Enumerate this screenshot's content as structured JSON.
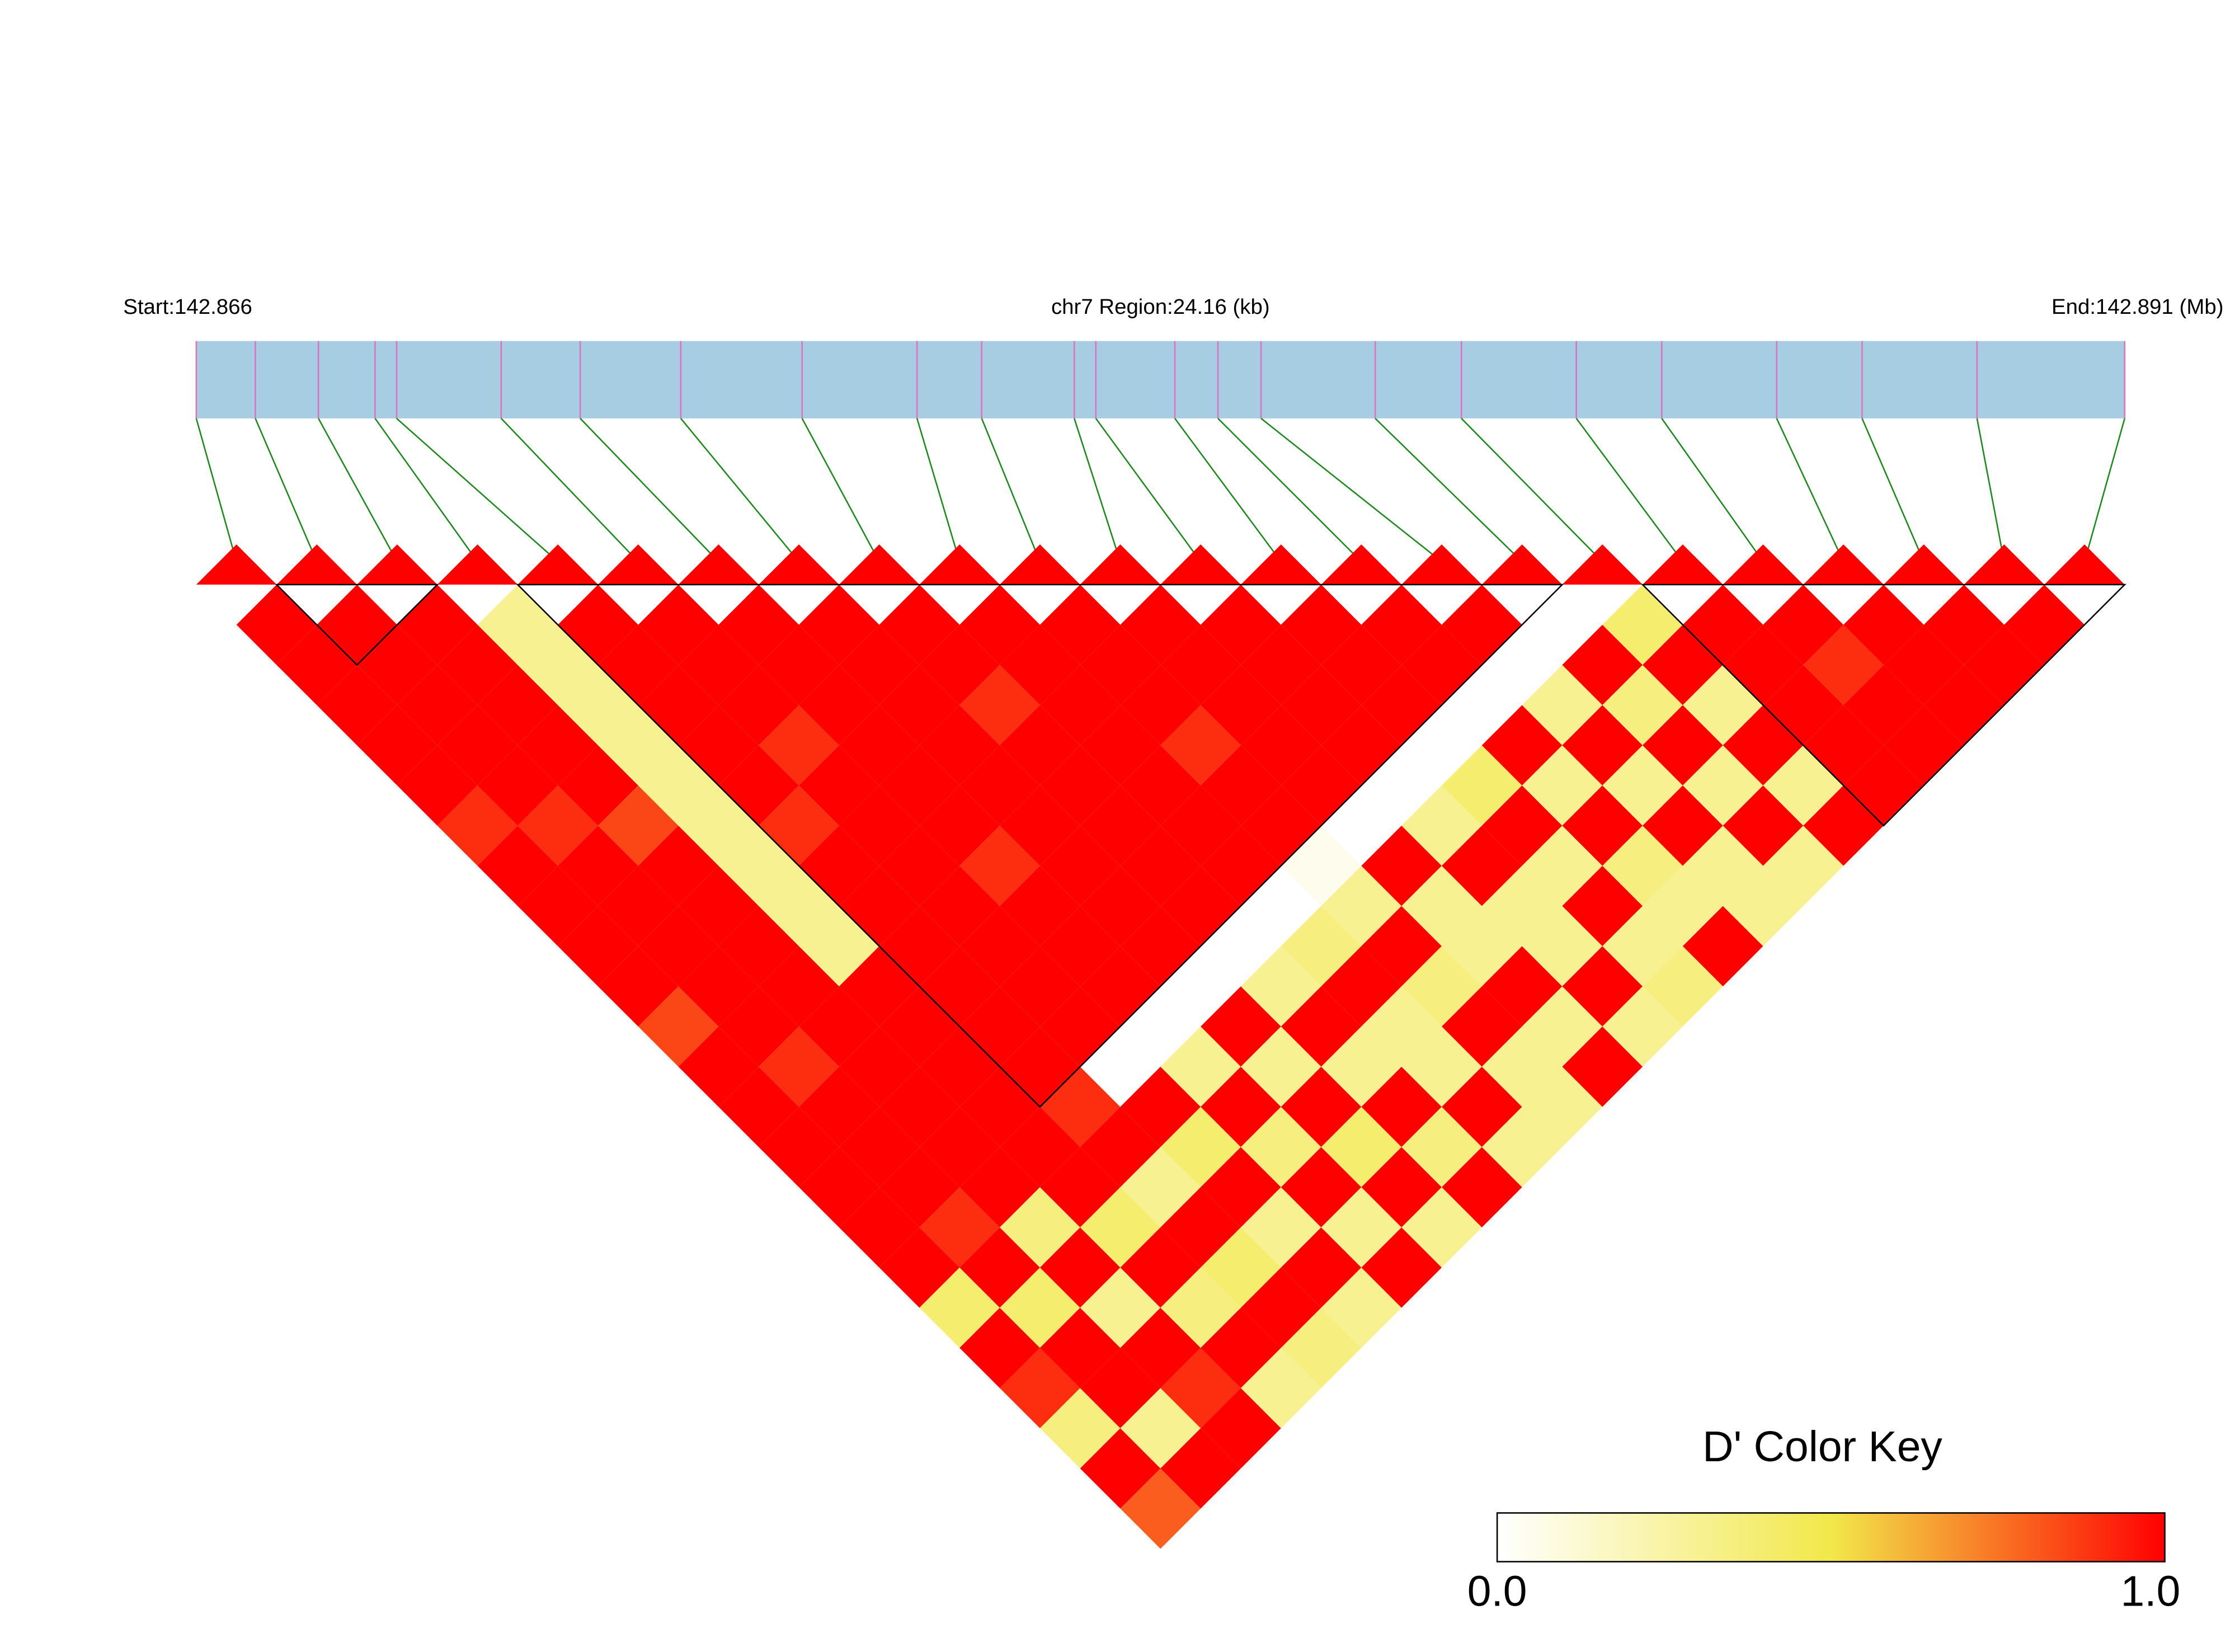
{
  "chart_data": {
    "type": "ld-heatmap",
    "start_label": "Start:142.866",
    "region_label": "chr7 Region:24.16 (kb)",
    "end_label": "End:142.891 (Mb)",
    "key_title": "D' Color Key",
    "xlim": [
      0,
      24.16
    ],
    "positions": [
      0,
      0.74,
      1.53,
      2.24,
      2.51,
      3.82,
      4.81,
      6.07,
      7.59,
      9.03,
      9.84,
      11.0,
      11.27,
      12.26,
      12.8,
      13.34,
      14.77,
      15.85,
      17.29,
      18.36,
      19.8,
      20.87,
      22.31,
      24.16
    ],
    "colors": [
      "#ffffff",
      "#f2e84a",
      "#ff0000"
    ],
    "key_ticks": [
      {
        "value": 0,
        "label": "0.0"
      },
      {
        "value": 1,
        "label": "1.0"
      }
    ],
    "blocks": [
      [
        1,
        2
      ],
      [
        4,
        16
      ],
      [
        18,
        23
      ]
    ],
    "matrix": [
      [
        1,
        1,
        1,
        1,
        1,
        0.9,
        1,
        1,
        1,
        1,
        0.85,
        1,
        1,
        1,
        1,
        1,
        1,
        0.4,
        1,
        0.9,
        0.35,
        1,
        0.8
      ],
      [
        1,
        1,
        1,
        1,
        1,
        0.9,
        1,
        1,
        1,
        1,
        1,
        0.9,
        1,
        1,
        1,
        0.9,
        1,
        0.4,
        1,
        1,
        0.3,
        1
      ],
      [
        1,
        1,
        1,
        1,
        1,
        0.85,
        1,
        1,
        1,
        1,
        1,
        1,
        1,
        1,
        1,
        0.35,
        1,
        0.3,
        1,
        0.9,
        1
      ],
      [
        0.3,
        0.3,
        0.3,
        0.3,
        0.3,
        0.3,
        0.3,
        0.3,
        0.3,
        1,
        1,
        1,
        1,
        1,
        1,
        0.4,
        1,
        0.35,
        1,
        0.3
      ],
      [
        1,
        1,
        1,
        1,
        1,
        0.9,
        1,
        1,
        1,
        1,
        1,
        1,
        0.9,
        1,
        0.3,
        1,
        0.4,
        1,
        0.35
      ],
      [
        1,
        1,
        1,
        0.9,
        1,
        1,
        1,
        1,
        1,
        1,
        1,
        0,
        1,
        0.4,
        1,
        0.3,
        1,
        0.3
      ],
      [
        1,
        1,
        1,
        1,
        1,
        1,
        0.9,
        1,
        1,
        1,
        0,
        0.3,
        1,
        0.35,
        1,
        0.3,
        1
      ],
      [
        1,
        1,
        1,
        1,
        1,
        1,
        1,
        1,
        1,
        0,
        1,
        0.3,
        1,
        0.4,
        1,
        0.3
      ],
      [
        1,
        1,
        0.9,
        1,
        1,
        1,
        1,
        1,
        0,
        0.3,
        1,
        0.3,
        1,
        0.35,
        1
      ],
      [
        1,
        1,
        1,
        1,
        1,
        1,
        1,
        0,
        0.35,
        1,
        0.3,
        0.3,
        1,
        0.3
      ],
      [
        1,
        1,
        1,
        0.9,
        1,
        1,
        0.05,
        0.3,
        1,
        0.35,
        1,
        0.3,
        0.3
      ],
      [
        1,
        1,
        1,
        1,
        1,
        0,
        1,
        0.3,
        0.3,
        1,
        0.3,
        1
      ],
      [
        1,
        1,
        1,
        1,
        0,
        0.3,
        1,
        0.3,
        0.3,
        1,
        0.3
      ],
      [
        1,
        1,
        1,
        0,
        0.4,
        1,
        0.3,
        1,
        0.3,
        0.35
      ],
      [
        1,
        1,
        0,
        1,
        0.3,
        1,
        0.35,
        0.3,
        1
      ],
      [
        1,
        0,
        0.3,
        1,
        0.3,
        1,
        0.3,
        0.3
      ],
      [
        0,
        1,
        0.35,
        1,
        0.3,
        1,
        0.3
      ],
      [
        0.4,
        1,
        0.3,
        1,
        0.3,
        1
      ],
      [
        1,
        1,
        1,
        1,
        1
      ],
      [
        1,
        0.9,
        1,
        1
      ],
      [
        1,
        1,
        1
      ],
      [
        1,
        1
      ],
      [
        1
      ]
    ]
  }
}
